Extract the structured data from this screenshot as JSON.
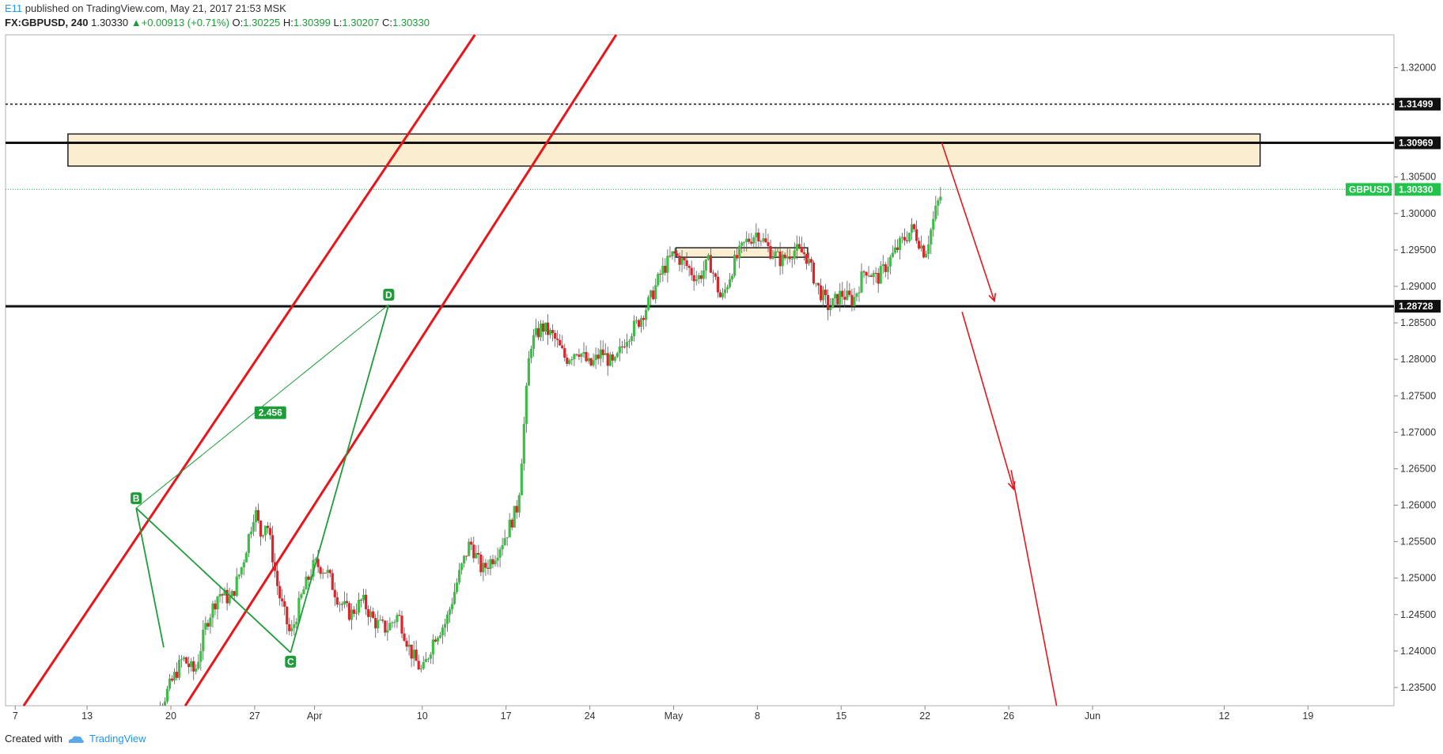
{
  "header": {
    "user": "E11",
    "published": " published on TradingView.com, May 21, 2017 21:53 MSK",
    "symbol": "FX:GBPUSD, 240",
    "last": "1.30330",
    "change": "+0.00913 (+0.71%)",
    "open_label": "O:",
    "open": "1.30225",
    "high_label": "H:",
    "high": "1.30399",
    "low_label": "L:",
    "low": "1.30207",
    "close_label": "C:",
    "close": "1.30330"
  },
  "footer": {
    "created_with": "Created with",
    "brand": "TradingView"
  },
  "chart_data": {
    "type": "candlestick",
    "title": "",
    "ylim": [
      1.2325,
      1.3245
    ],
    "x_axis_ticks": [
      "7",
      "13",
      "20",
      "27",
      "Apr",
      "10",
      "17",
      "24",
      "May",
      "8",
      "15",
      "22",
      "26",
      "Jun",
      "12",
      "19",
      "26"
    ],
    "y_axis_ticks": [
      "1.32000",
      "1.30500",
      "1.30000",
      "1.29500",
      "1.29000",
      "1.28500",
      "1.28000",
      "1.27500",
      "1.27000",
      "1.26500",
      "1.26000",
      "1.25500",
      "1.25000",
      "1.24500",
      "1.24000",
      "1.23500"
    ],
    "price_labels": [
      {
        "name": "dotted-resistance",
        "value": "1.31499",
        "style": "dotted"
      },
      {
        "name": "resistance",
        "value": "1.30969",
        "style": "solid"
      },
      {
        "name": "support",
        "value": "1.28728",
        "style": "solid"
      }
    ],
    "current_price": {
      "symbol": "GBPUSD",
      "value": "1.30330",
      "color": "#22c34a"
    },
    "zones": [
      {
        "name": "upper-supply-zone",
        "from_day": 5.4,
        "to_day": 105,
        "low": 1.3065,
        "high": 1.3109
      },
      {
        "name": "mid-zone",
        "from_day": 56.2,
        "to_day": 67.2,
        "low": 1.294,
        "high": 1.2953
      }
    ],
    "channel": {
      "color": "#e8161b",
      "upper": [
        [
          -12.3,
          1.2325
        ],
        [
          25.4,
          1.3245
        ]
      ],
      "lower": [
        [
          1.2,
          1.2325
        ],
        [
          37.2,
          1.3245
        ]
      ]
    },
    "pattern": {
      "color": "#1f9c3a",
      "points": [
        {
          "label": "",
          "day": -0.6,
          "price": 1.2405
        },
        {
          "label": "B",
          "day": -2.9,
          "price": 1.2596
        },
        {
          "label": "C",
          "day": 10.0,
          "price": 1.2398
        },
        {
          "label": "D",
          "day": 18.2,
          "price": 1.2875
        }
      ],
      "ratio_label": "2.456"
    },
    "arrows": [
      {
        "from_day": 22.4,
        "from_price": 1.3097,
        "to_day": 26.8,
        "to_price": 1.288
      },
      {
        "from_day": 24.1,
        "from_price": 1.2865,
        "to_day": 28.4,
        "to_price": 1.2622
      },
      {
        "from_day": 28.2,
        "from_price": 1.2648,
        "to_day": 32.0,
        "to_price": 1.2325
      }
    ],
    "colors": {
      "up": "#26a69a",
      "up_fill": "#3cbf45",
      "down": "#e0232b",
      "wick": "#555555"
    },
    "candles": []
  }
}
